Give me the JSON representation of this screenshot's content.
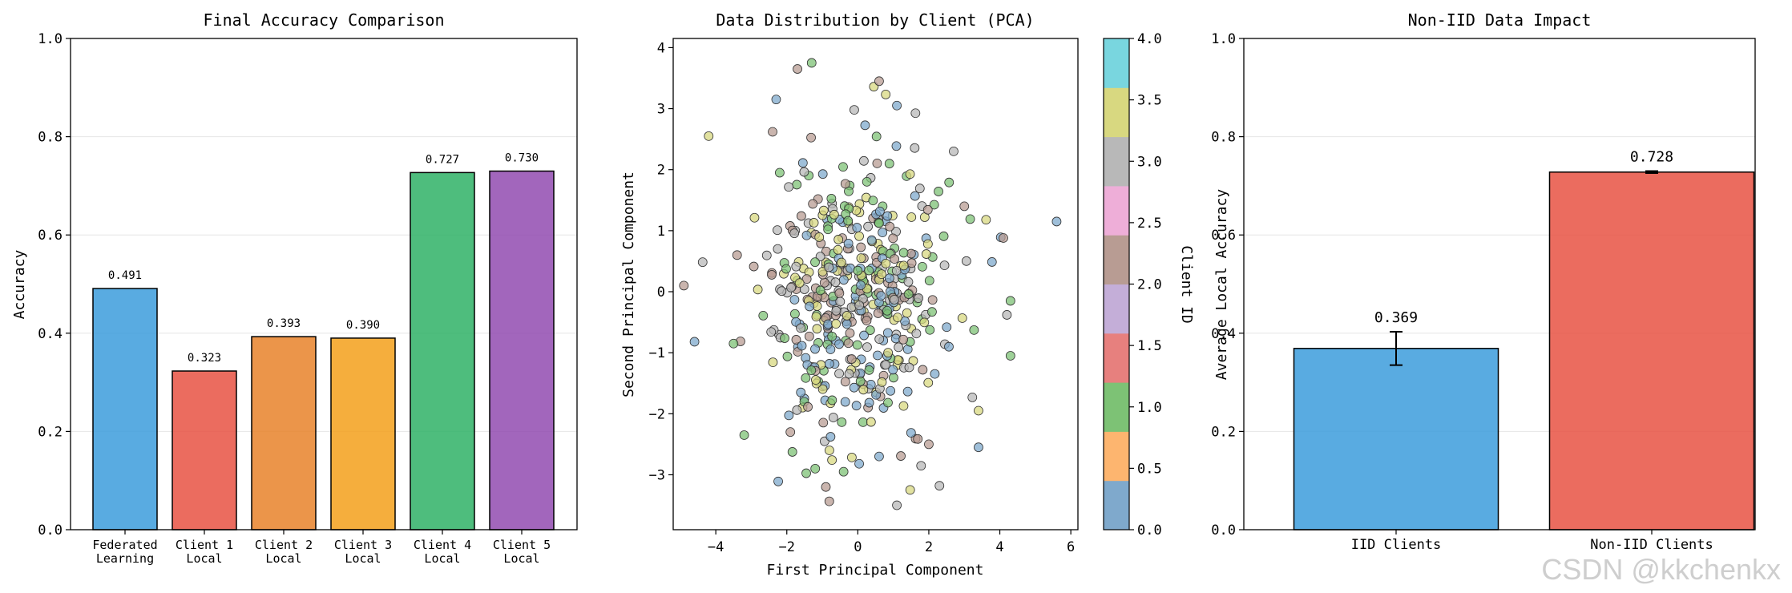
{
  "chart_data": [
    {
      "type": "bar",
      "title": "Final Accuracy Comparison",
      "xlabel": "",
      "ylabel": "Accuracy",
      "ylim": [
        0,
        1.0
      ],
      "yticks": [
        "0.0",
        "0.2",
        "0.4",
        "0.6",
        "0.8",
        "1.0"
      ],
      "grid": "y",
      "categories": [
        [
          "Federated",
          "Learning"
        ],
        [
          "Client 1",
          "Local"
        ],
        [
          "Client 2",
          "Local"
        ],
        [
          "Client 3",
          "Local"
        ],
        [
          "Client 4",
          "Local"
        ],
        [
          "Client 5",
          "Local"
        ]
      ],
      "values": [
        0.491,
        0.323,
        0.393,
        0.39,
        0.727,
        0.73
      ],
      "value_labels": [
        "0.491",
        "0.323",
        "0.393",
        "0.390",
        "0.727",
        "0.730"
      ],
      "colors": [
        "#3498db",
        "#e74c3c",
        "#e67e22",
        "#f39c12",
        "#27ae60",
        "#8e44ad"
      ]
    },
    {
      "type": "scatter",
      "title": "Data Distribution by Client (PCA)",
      "xlabel": "First Principal Component",
      "ylabel": "Second Principal Component",
      "xlim": [
        -5.2,
        6.2
      ],
      "ylim": [
        -3.9,
        4.15
      ],
      "xticks": [
        "−4",
        "−2",
        "0",
        "2",
        "4",
        "6"
      ],
      "yticks": [
        "−3",
        "−2",
        "−1",
        "0",
        "1",
        "2",
        "3",
        "4"
      ],
      "points": [
        [
          -4.2,
          2.55,
          3.5
        ],
        [
          5.6,
          1.15,
          0
        ],
        [
          -4.9,
          0.1,
          2
        ],
        [
          -4.6,
          -0.82,
          0
        ],
        [
          -1.3,
          3.75,
          1
        ],
        [
          -1.7,
          3.65,
          2
        ],
        [
          0.6,
          3.45,
          2
        ],
        [
          -2.3,
          3.15,
          0
        ],
        [
          1.1,
          3.05,
          0
        ],
        [
          -0.1,
          2.98,
          3
        ],
        [
          -2.4,
          2.62,
          2
        ],
        [
          4.1,
          0.88,
          2
        ],
        [
          1.1,
          -3.5,
          3
        ],
        [
          2.3,
          -3.18,
          3
        ],
        [
          -0.9,
          -3.2,
          2
        ],
        [
          3.4,
          -2.55,
          0
        ],
        [
          -1.2,
          -2.9,
          1
        ],
        [
          -0.4,
          -2.95,
          1
        ],
        [
          0.6,
          -2.7,
          0
        ],
        [
          -3.2,
          -2.35,
          1
        ],
        [
          4.3,
          -1.05,
          1
        ],
        [
          4.3,
          -0.15,
          1
        ],
        [
          4.2,
          -0.38,
          3
        ],
        [
          -3.4,
          0.6,
          2
        ],
        [
          -3.5,
          -0.85,
          1
        ],
        [
          3.4,
          -1.95,
          3.5
        ],
        [
          2.7,
          2.3,
          3
        ],
        [
          3.0,
          1.4,
          2
        ],
        [
          -2.2,
          1.95,
          1
        ],
        [
          -1.9,
          -2.3,
          2
        ],
        [
          -0.8,
          -2.6,
          3.5
        ],
        [
          2.0,
          -2.5,
          2
        ]
      ],
      "colorbar": {
        "label": "Client ID",
        "ticks": [
          "0.0",
          "0.5",
          "1.0",
          "1.5",
          "2.0",
          "2.5",
          "3.0",
          "3.5",
          "4.0"
        ],
        "colors": [
          "#7fa9cc",
          "#fdb56f",
          "#7dc275",
          "#e7807e",
          "#c4aed8",
          "#b89c93",
          "#eeaed8",
          "#b8b8b8",
          "#d8d880",
          "#79d6df"
        ]
      }
    },
    {
      "type": "bar",
      "title": "Non-IID Data Impact",
      "xlabel": "",
      "ylabel": "Average Local Accuracy",
      "ylim": [
        0,
        1.0
      ],
      "yticks": [
        "0.0",
        "0.2",
        "0.4",
        "0.6",
        "0.8",
        "1.0"
      ],
      "grid": "y",
      "categories": [
        "IID Clients",
        "Non-IID Clients"
      ],
      "values": [
        0.369,
        0.728
      ],
      "error": [
        0.034,
        0.002
      ],
      "value_labels": [
        "0.369",
        "0.728"
      ],
      "colors": [
        "#3498db",
        "#e74c3c"
      ]
    }
  ],
  "watermark": "CSDN @kkchenkx"
}
